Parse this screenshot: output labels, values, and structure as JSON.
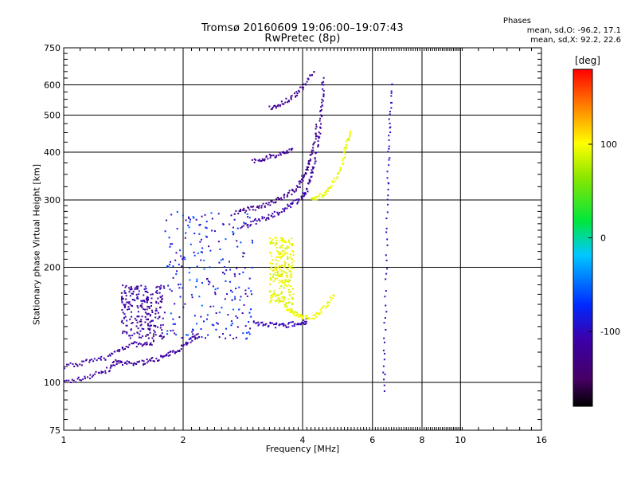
{
  "chart_data": {
    "type": "scatter",
    "title": "Tromsø 20160609 19:06:00–19:07:43",
    "subtitle": "RwPretec (8p)",
    "xlabel": "Frequency [MHz]",
    "ylabel": "Stationary phase Virtual Height [km]",
    "x_scale": "log",
    "y_scale": "log",
    "xlim": [
      1,
      16
    ],
    "ylim": [
      75,
      750
    ],
    "x_ticks": [
      "1",
      "2",
      "4",
      "6",
      "8",
      "10",
      "16"
    ],
    "y_ticks": [
      "75",
      "100",
      "200",
      "300",
      "400",
      "500",
      "600",
      "750"
    ],
    "grid": true,
    "colorbar": {
      "unit": "[deg]",
      "range": [
        -180,
        180
      ],
      "tick_labels": [
        "100",
        "0",
        "-100"
      ],
      "tick_values": [
        100,
        0,
        -100
      ]
    },
    "phase_stats": {
      "heading": "Phases",
      "line_o": "mean, sd,O:  -96.2, 17.1",
      "line_x": "mean, sd,X:  92.2, 22.6"
    },
    "traces": [
      {
        "phase": -115,
        "points": [
          [
            1.0,
            100
          ],
          [
            1.1,
            102
          ],
          [
            1.2,
            105
          ],
          [
            1.3,
            108
          ],
          [
            1.35,
            113
          ],
          [
            1.4,
            112
          ],
          [
            1.5,
            112
          ],
          [
            1.6,
            113
          ],
          [
            1.7,
            115
          ],
          [
            1.8,
            117
          ],
          [
            1.9,
            120
          ],
          [
            2.0,
            125
          ],
          [
            2.1,
            130
          ],
          [
            2.2,
            133
          ]
        ]
      },
      {
        "phase": -112,
        "points": [
          [
            1.0,
            110
          ],
          [
            1.1,
            112
          ],
          [
            1.2,
            114
          ],
          [
            1.3,
            117
          ],
          [
            1.4,
            123
          ],
          [
            1.5,
            126
          ],
          [
            1.6,
            125
          ],
          [
            1.7,
            128
          ]
        ]
      },
      {
        "phase": -110,
        "points": [
          [
            2.8,
            255
          ],
          [
            3.0,
            262
          ],
          [
            3.2,
            268
          ],
          [
            3.4,
            275
          ],
          [
            3.6,
            284
          ],
          [
            3.8,
            294
          ],
          [
            4.0,
            306
          ],
          [
            4.1,
            320
          ],
          [
            4.2,
            345
          ],
          [
            4.3,
            380
          ],
          [
            4.4,
            440
          ],
          [
            4.45,
            500
          ],
          [
            4.5,
            560
          ],
          [
            4.5,
            630
          ]
        ]
      },
      {
        "phase": -105,
        "points": [
          [
            3.0,
            143
          ],
          [
            3.2,
            142
          ],
          [
            3.4,
            141
          ],
          [
            3.6,
            141
          ],
          [
            3.8,
            142
          ],
          [
            4.0,
            143
          ],
          [
            4.1,
            145
          ]
        ]
      },
      {
        "phase": -125,
        "points": [
          [
            2.7,
            278
          ],
          [
            2.9,
            283
          ],
          [
            3.1,
            288
          ],
          [
            3.3,
            294
          ],
          [
            3.5,
            302
          ],
          [
            3.7,
            312
          ],
          [
            3.9,
            325
          ],
          [
            4.0,
            340
          ],
          [
            4.1,
            360
          ],
          [
            4.2,
            390
          ],
          [
            4.3,
            430
          ],
          [
            4.35,
            470
          ]
        ]
      },
      {
        "phase": 95,
        "points": [
          [
            3.6,
            160
          ],
          [
            3.7,
            155
          ],
          [
            3.8,
            152
          ],
          [
            3.9,
            150
          ],
          [
            4.0,
            148
          ],
          [
            4.2,
            147
          ],
          [
            4.4,
            152
          ],
          [
            4.6,
            160
          ],
          [
            4.8,
            172
          ]
        ]
      },
      {
        "phase": 95,
        "points": [
          [
            4.2,
            300
          ],
          [
            4.4,
            305
          ],
          [
            4.6,
            315
          ],
          [
            4.8,
            335
          ],
          [
            5.0,
            360
          ],
          [
            5.1,
            395
          ],
          [
            5.2,
            430
          ],
          [
            5.3,
            455
          ]
        ]
      },
      {
        "phase": -120,
        "points": [
          [
            3.3,
            520
          ],
          [
            3.5,
            535
          ],
          [
            3.7,
            550
          ],
          [
            3.9,
            575
          ],
          [
            4.1,
            610
          ],
          [
            4.3,
            650
          ]
        ]
      },
      {
        "phase": -120,
        "points": [
          [
            3.0,
            380
          ],
          [
            3.2,
            385
          ],
          [
            3.4,
            392
          ],
          [
            3.6,
            400
          ],
          [
            3.8,
            410
          ]
        ]
      },
      {
        "phase": -100,
        "points": [
          [
            6.4,
            95
          ],
          [
            6.45,
            130
          ],
          [
            6.5,
            200
          ],
          [
            6.55,
            300
          ],
          [
            6.6,
            400
          ],
          [
            6.65,
            500
          ],
          [
            6.7,
            620
          ]
        ]
      }
    ],
    "clouds": [
      {
        "x_range": [
          1.8,
          3.0
        ],
        "y_range": [
          130,
          280
        ],
        "phases": [
          -100,
          -70,
          -60,
          -110
        ]
      },
      {
        "x_range": [
          1.4,
          1.8
        ],
        "y_range": [
          130,
          180
        ],
        "phases": [
          -110,
          -120
        ]
      },
      {
        "x_range": [
          3.3,
          3.8
        ],
        "y_range": [
          160,
          240
        ],
        "phases": [
          90,
          100
        ]
      }
    ]
  }
}
